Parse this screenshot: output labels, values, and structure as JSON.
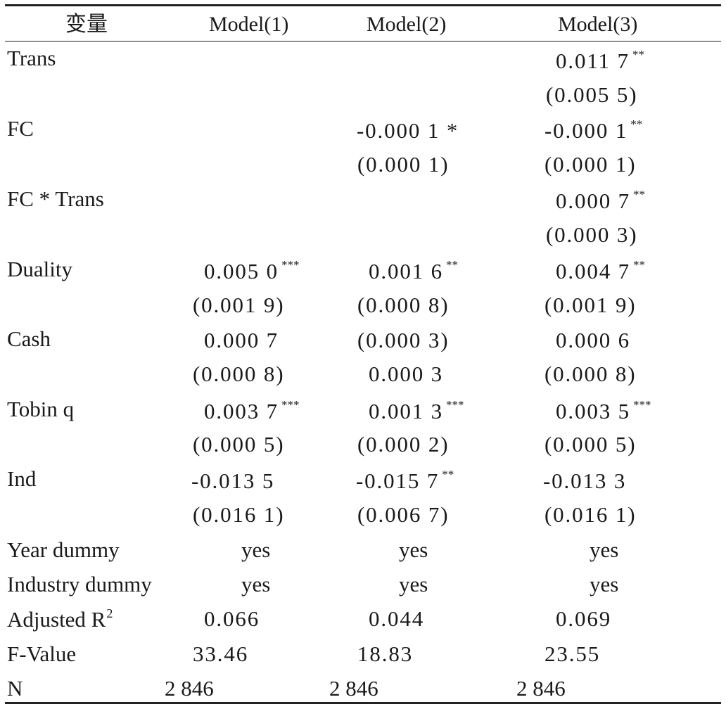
{
  "table": {
    "header": {
      "var": "变量",
      "m1": "Model(1)",
      "m2": "Model(2)",
      "m3": "Model(3)"
    },
    "rows": {
      "trans": {
        "label": "Trans",
        "m3": "0.011 7",
        "m3_sig": "**",
        "m3_se": "(0.005 5)"
      },
      "fc": {
        "label": "FC",
        "m2": "-0.000 1 *",
        "m2_se": "(0.000 1)",
        "m3": "-0.000 1",
        "m3_sig": "**",
        "m3_se": "(0.000 1)"
      },
      "fctrans": {
        "label": "FC * Trans",
        "m3": "0.000 7",
        "m3_sig": "**",
        "m3_se": "(0.000 3)"
      },
      "duality": {
        "label": "Duality",
        "m1": "0.005 0",
        "m1_sig": "***",
        "m1_se": "(0.001 9)",
        "m2": "0.001 6",
        "m2_sig": "**",
        "m2_se": "(0.000 8)",
        "m3": "0.004 7",
        "m3_sig": "**",
        "m3_se": "(0.001 9)"
      },
      "cash": {
        "label": "Cash",
        "m1": "0.000 7",
        "m1_se": "(0.000 8)",
        "m2": "(0.000 3)",
        "m2_se": "0.000 3",
        "m3": "0.000 6",
        "m3_se": "(0.000 8)"
      },
      "tobin": {
        "label": "Tobin q",
        "m1": "0.003 7",
        "m1_sig": "***",
        "m1_se": "(0.000 5)",
        "m2": "0.001 3",
        "m2_sig": "***",
        "m2_se": "(0.000 2)",
        "m3": "0.003 5",
        "m3_sig": "***",
        "m3_se": "(0.000 5)"
      },
      "ind": {
        "label": "Ind",
        "m1": "-0.013 5",
        "m1_se": "(0.016 1)",
        "m2": "-0.015 7",
        "m2_sig": "**",
        "m2_se": "(0.006 7)",
        "m3": "-0.013 3",
        "m3_se": "(0.016 1)"
      },
      "year": {
        "label": "Year dummy",
        "m1": "yes",
        "m2": "yes",
        "m3": "yes"
      },
      "industry": {
        "label": "Industry dummy",
        "m1": "yes",
        "m2": "yes",
        "m3": "yes"
      },
      "adjr2": {
        "label": "Adjusted R",
        "label_sup": "2",
        "m1": "0.066",
        "m2": "0.044",
        "m3": "0.069"
      },
      "fvalue": {
        "label": "F-Value",
        "m1": "33.46",
        "m2": "18.83",
        "m3": "23.55"
      },
      "n": {
        "label": "N",
        "m1": "2 846",
        "m2": "2 846",
        "m3": "2 846"
      }
    }
  }
}
